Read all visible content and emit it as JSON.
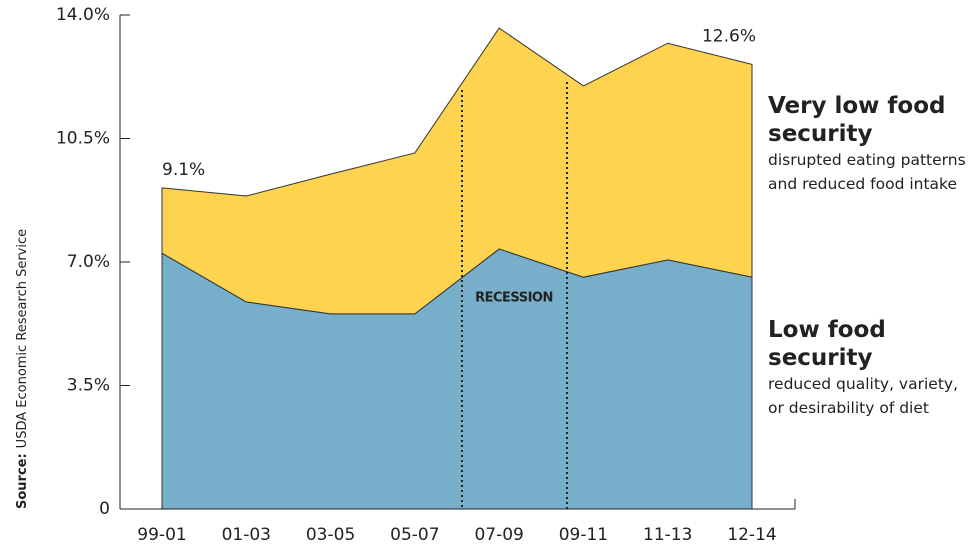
{
  "chart_data": {
    "type": "stacked-area",
    "categories": [
      "99-01",
      "01-03",
      "03-05",
      "05-07",
      "07-09",
      "09-11",
      "11-13",
      "12-14"
    ],
    "series": [
      {
        "name": "Low food security",
        "description": "reduced quality, variety, or desirability of diet",
        "color": "#77aec9",
        "values": [
          7.25,
          5.87,
          5.53,
          5.53,
          7.37,
          6.57,
          7.06,
          6.57
        ]
      },
      {
        "name": "Very low food security",
        "description": "disrupted eating patterns and reduced food intake",
        "color": "#fdd350",
        "values": [
          1.85,
          3.0,
          3.96,
          4.56,
          6.26,
          5.42,
          6.14,
          6.03
        ]
      }
    ],
    "annotations": [
      "9.1%",
      "12.6%",
      "RECESSION"
    ],
    "source_label": "Source:",
    "source": "USDA Economic Research Service",
    "ylim": [
      0,
      14
    ],
    "yticks": [
      0,
      {
        "value": 3.5,
        "label": "3.5%"
      },
      {
        "value": 7,
        "label": "7.0%"
      },
      {
        "value": 10.5,
        "label": "10.5%"
      },
      {
        "value": 14,
        "label": "14.0%"
      }
    ]
  }
}
